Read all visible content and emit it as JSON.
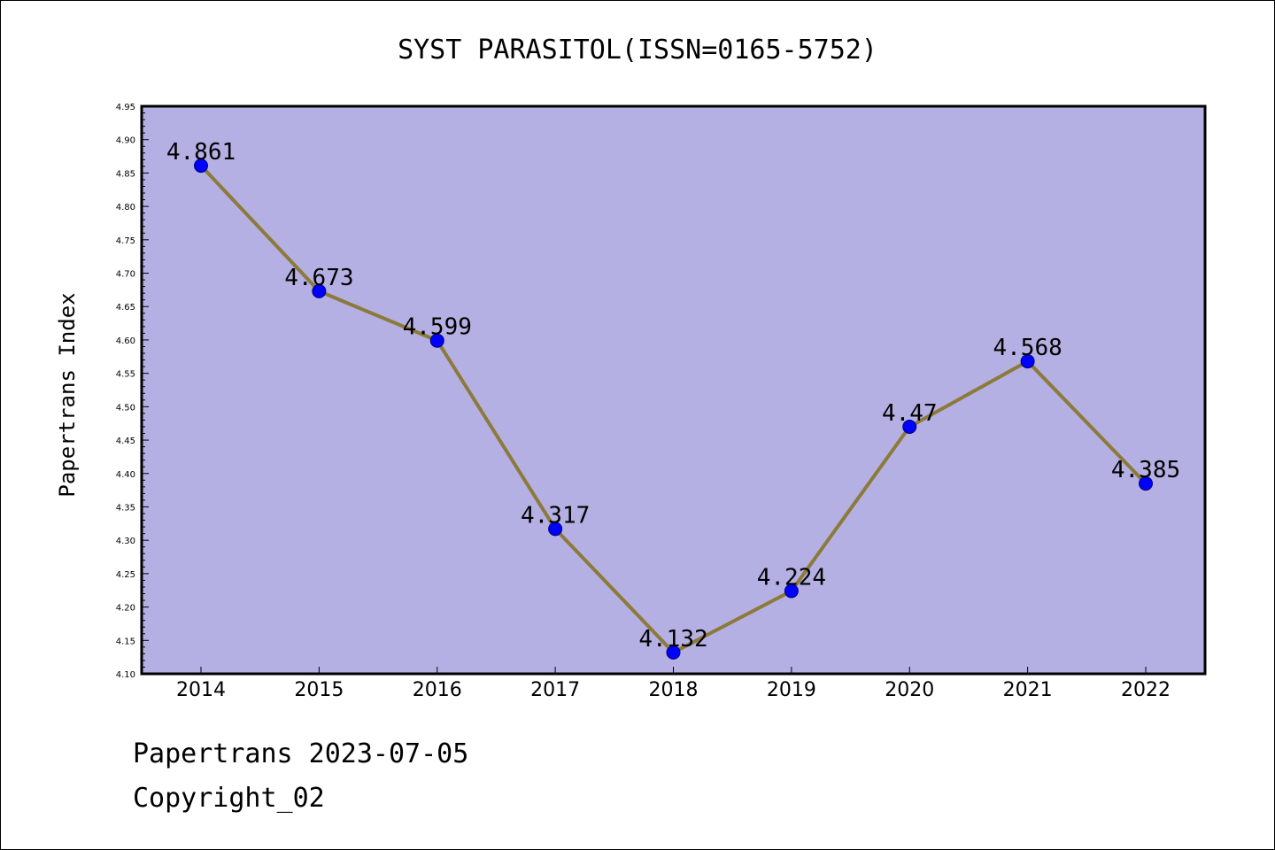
{
  "chart_data": {
    "type": "line",
    "title": "SYST PARASITOL(ISSN=0165-5752)",
    "xlabel": "",
    "ylabel": "Papertrans Index",
    "categories": [
      "2014",
      "2015",
      "2016",
      "2017",
      "2018",
      "2019",
      "2020",
      "2021",
      "2022"
    ],
    "values": [
      4.861,
      4.673,
      4.599,
      4.317,
      4.132,
      4.224,
      4.47,
      4.568,
      4.385
    ],
    "data_labels": [
      "4.861",
      "4.673",
      "4.599",
      "4.317",
      "4.132",
      "4.224",
      "4.47",
      "4.568",
      "4.385"
    ],
    "ylim": [
      4.1,
      4.95
    ],
    "yticks": [
      "4.10",
      "4.15",
      "4.20",
      "4.25",
      "4.30",
      "4.35",
      "4.40",
      "4.45",
      "4.50",
      "4.55",
      "4.60",
      "4.65",
      "4.70",
      "4.75",
      "4.80",
      "4.85",
      "4.90",
      "4.95"
    ],
    "grid": false,
    "legend": "none",
    "colors": {
      "plot_background": "#b5b0e3",
      "line": "#8b7a3a",
      "marker": "#0000ff",
      "marker_edge": "#00007a"
    }
  },
  "footer": {
    "line1": "Papertrans 2023-07-05",
    "line2": "Copyright_02"
  }
}
